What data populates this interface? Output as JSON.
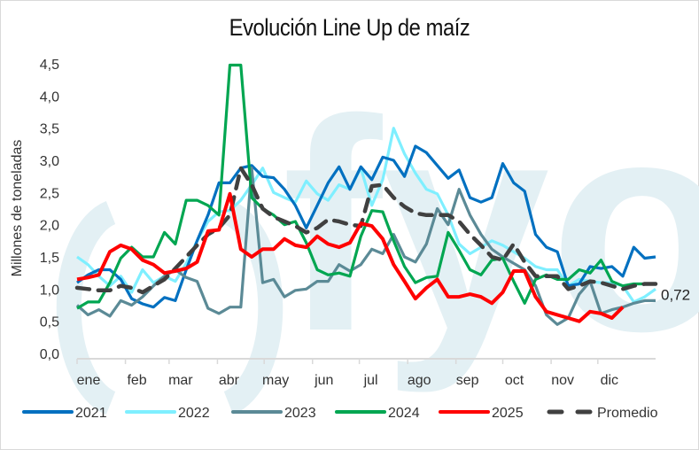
{
  "chart_data": {
    "type": "line",
    "title": "Evolución Line Up de maíz",
    "xlabel": "",
    "ylabel": "Millones de toneladas",
    "ylim": [
      0,
      4.5
    ],
    "yticks": [
      "0,0",
      "0,5",
      "1,0",
      "1,5",
      "2,0",
      "2,5",
      "3,0",
      "3,5",
      "4,0",
      "4,5"
    ],
    "ytick_values": [
      0,
      0.5,
      1.0,
      1.5,
      2.0,
      2.5,
      3.0,
      3.5,
      4.0,
      4.5
    ],
    "categories": [
      "ene",
      "feb",
      "mar",
      "abr",
      "may",
      "jun",
      "jul",
      "ago",
      "sep",
      "oct",
      "nov",
      "dic"
    ],
    "x_unit": "week",
    "grid": false,
    "legend_position": "bottom",
    "watermark": "fyo",
    "end_annotation": {
      "series": "2025",
      "label": "0,72",
      "value": 0.72
    },
    "series": [
      {
        "name": "2021",
        "color": "#0070c0",
        "style": "solid",
        "values": [
          1.1,
          1.22,
          1.3,
          1.3,
          1.15,
          0.85,
          0.77,
          0.72,
          0.87,
          0.82,
          1.3,
          1.75,
          2.15,
          2.65,
          2.65,
          2.88,
          2.92,
          2.75,
          2.73,
          2.55,
          2.3,
          1.95,
          2.3,
          2.65,
          2.9,
          2.55,
          2.9,
          2.7,
          3.05,
          3.0,
          2.75,
          3.22,
          3.12,
          2.92,
          2.72,
          2.85,
          2.42,
          2.35,
          2.42,
          2.95,
          2.65,
          2.52,
          1.85,
          1.65,
          1.58,
          1.05,
          1.08,
          1.35,
          1.32,
          1.35,
          1.2,
          1.65,
          1.48,
          1.5
        ]
      },
      {
        "name": "2022",
        "color": "#7fefff",
        "style": "solid",
        "values": [
          1.5,
          1.38,
          1.2,
          1.05,
          1.2,
          0.95,
          1.3,
          1.1,
          1.2,
          1.12,
          1.4,
          1.75,
          2.05,
          2.2,
          2.22,
          2.38,
          2.62,
          2.88,
          2.5,
          2.42,
          2.35,
          2.68,
          2.48,
          2.38,
          2.62,
          2.55,
          2.88,
          2.3,
          2.7,
          3.5,
          3.1,
          2.8,
          2.55,
          2.48,
          2.15,
          1.7,
          1.55,
          1.65,
          1.75,
          1.68,
          1.58,
          1.48,
          1.35,
          1.3,
          1.3,
          1.05,
          1.15,
          1.12,
          1.1,
          1.1,
          1.05,
          0.8,
          0.88,
          1.0
        ]
      },
      {
        "name": "2023",
        "color": "#5b8a96",
        "style": "solid",
        "values": [
          0.75,
          0.6,
          0.68,
          0.58,
          0.82,
          0.75,
          0.88,
          1.05,
          1.2,
          1.3,
          1.18,
          1.12,
          0.7,
          0.62,
          0.72,
          0.72,
          2.88,
          1.1,
          1.15,
          0.88,
          0.98,
          1.0,
          1.12,
          1.12,
          1.38,
          1.28,
          1.38,
          1.62,
          1.55,
          1.85,
          1.5,
          1.42,
          1.7,
          2.25,
          2.0,
          2.55,
          2.15,
          1.85,
          1.62,
          1.5,
          1.4,
          1.3,
          1.05,
          0.6,
          0.45,
          0.55,
          0.92,
          1.12,
          0.62,
          0.68,
          0.72,
          0.78,
          0.82,
          0.82
        ]
      },
      {
        "name": "2024",
        "color": "#00a651",
        "style": "solid",
        "values": [
          0.7,
          0.8,
          0.8,
          1.1,
          1.48,
          1.65,
          1.5,
          1.5,
          1.88,
          1.7,
          2.38,
          2.38,
          2.3,
          2.15,
          4.48,
          4.48,
          2.42,
          2.25,
          2.15,
          2.0,
          2.05,
          1.72,
          1.3,
          1.22,
          1.25,
          1.2,
          1.82,
          2.22,
          2.2,
          1.75,
          1.35,
          1.1,
          1.18,
          1.2,
          1.88,
          1.6,
          1.3,
          1.22,
          1.45,
          1.48,
          1.12,
          0.78,
          1.15,
          1.22,
          1.15,
          1.15,
          1.3,
          1.25,
          1.45,
          1.12,
          1.05,
          1.08,
          1.08,
          1.08
        ]
      },
      {
        "name": "2025",
        "color": "#ff0000",
        "style": "solid",
        "values": [
          1.15,
          1.18,
          1.22,
          1.58,
          1.68,
          1.62,
          1.45,
          1.38,
          1.25,
          1.28,
          1.32,
          1.42,
          1.9,
          1.92,
          2.48,
          1.62,
          1.5,
          1.62,
          1.62,
          1.78,
          1.68,
          1.65,
          1.82,
          1.7,
          1.65,
          1.72,
          2.02,
          1.98,
          1.78,
          1.38,
          1.12,
          0.85,
          1.02,
          1.15,
          0.88,
          0.88,
          0.92,
          0.88,
          0.78,
          0.95,
          1.28,
          1.28,
          0.88,
          0.65,
          0.6,
          0.55,
          0.5,
          0.65,
          0.62,
          0.55,
          0.72
        ]
      },
      {
        "name": "Promedio",
        "color": "#404040",
        "style": "dashed",
        "values": [
          1.02,
          1.0,
          0.98,
          0.98,
          1.05,
          1.02,
          0.95,
          1.05,
          1.15,
          1.32,
          1.5,
          1.68,
          1.85,
          1.95,
          2.15,
          2.88,
          2.62,
          2.25,
          2.12,
          2.05,
          1.98,
          1.88,
          1.95,
          2.08,
          2.05,
          2.0,
          1.98,
          2.6,
          2.62,
          2.42,
          2.28,
          2.18,
          2.15,
          2.15,
          2.15,
          2.05,
          1.85,
          1.68,
          1.5,
          1.45,
          1.7,
          1.42,
          1.2,
          1.2,
          1.2,
          1.0,
          1.05,
          1.12,
          1.1,
          1.05,
          1.0,
          1.05,
          1.08,
          1.08
        ]
      }
    ]
  }
}
